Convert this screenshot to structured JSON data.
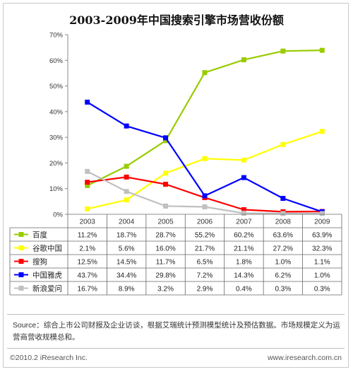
{
  "chart_data": {
    "type": "line",
    "title": "2003-2009年中国搜索引擎市场营收份额",
    "categories": [
      "2003",
      "2004",
      "2005",
      "2006",
      "2007",
      "2008",
      "2009"
    ],
    "y_ticks": [
      "0%",
      "10%",
      "20%",
      "30%",
      "40%",
      "50%",
      "60%",
      "70%"
    ],
    "ylim": [
      0,
      70
    ],
    "grid": false,
    "legend_placement": "data table below chart",
    "series": [
      {
        "name": "百度",
        "color": "#99cc00",
        "values": [
          11.2,
          18.7,
          28.7,
          55.2,
          60.2,
          63.6,
          63.9
        ],
        "labels": [
          "11.2%",
          "18.7%",
          "28.7%",
          "55.2%",
          "60.2%",
          "63.6%",
          "63.9%"
        ]
      },
      {
        "name": "谷歌中国",
        "color": "#ffff00",
        "values": [
          2.1,
          5.6,
          16.0,
          21.7,
          21.1,
          27.2,
          32.3
        ],
        "labels": [
          "2.1%",
          "5.6%",
          "16.0%",
          "21.7%",
          "21.1%",
          "27.2%",
          "32.3%"
        ]
      },
      {
        "name": "搜狗",
        "color": "#ff0000",
        "values": [
          12.5,
          14.5,
          11.7,
          6.5,
          1.8,
          1.0,
          1.1
        ],
        "labels": [
          "12.5%",
          "14.5%",
          "11.7%",
          "6.5%",
          "1.8%",
          "1.0%",
          "1.1%"
        ]
      },
      {
        "name": "中国雅虎",
        "color": "#0000ff",
        "values": [
          43.7,
          34.4,
          29.8,
          7.2,
          14.3,
          6.2,
          1.0
        ],
        "labels": [
          "43.7%",
          "34.4%",
          "29.8%",
          "7.2%",
          "14.3%",
          "6.2%",
          "1.0%"
        ]
      },
      {
        "name": "新浪爱问",
        "color": "#c0c0c0",
        "values": [
          16.7,
          8.9,
          3.2,
          2.9,
          0.4,
          0.3,
          0.3
        ],
        "labels": [
          "16.7%",
          "8.9%",
          "3.2%",
          "2.9%",
          "0.4%",
          "0.3%",
          "0.3%"
        ]
      }
    ]
  },
  "source": "Source：综合上市公司财报及企业访谈，根据艾瑞统计预测模型统计及预估数据。市场规模定义为运营商营收规模总和。",
  "copyright": "©2010.2 iResearch Inc.",
  "website": "www.iresearch.com.cn"
}
